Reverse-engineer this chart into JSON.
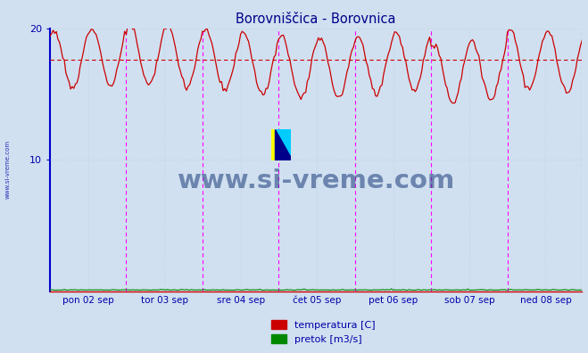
{
  "title": "Borovniščica - Borovnica",
  "title_color": "#00008B",
  "bg_color": "#d0e0f0",
  "plot_bg_color": "#d0e0f0",
  "grid_color": "#b0c8e0",
  "border_left_color": "#0000cc",
  "border_bottom_color": "#cc0000",
  "axis_label_color": "#0000aa",
  "ylim": [
    0,
    20
  ],
  "ytick_values": [
    10,
    20
  ],
  "num_points": 336,
  "days": 7,
  "temp_color": "#cc0000",
  "flow_color": "#008800",
  "avg_line_color": "#cc0000",
  "avg_line_value": 17.6,
  "vline_color": "#ff00ff",
  "watermark_text": "www.si-vreme.com",
  "watermark_color": "#1a3a7a",
  "legend_labels": [
    "temperatura [C]",
    "pretok [m3/s]"
  ],
  "legend_colors": [
    "#cc0000",
    "#008800"
  ],
  "xtick_labels": [
    "pon 02 sep",
    "tor 03 sep",
    "sre 04 sep",
    "čet 05 sep",
    "pet 06 sep",
    "sob 07 sep",
    "ned 08 sep"
  ],
  "temp_base": 17.5,
  "temp_amplitude": 2.3,
  "temp_period_hours": 12,
  "flow_base": 0.08,
  "logo_colors": [
    "#ffff00",
    "#00ccff",
    "#00008B"
  ]
}
